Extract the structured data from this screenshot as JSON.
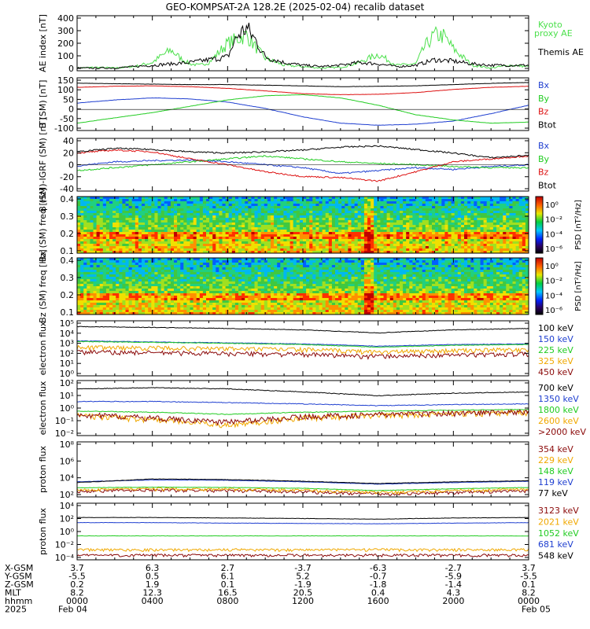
{
  "title": "GEO-KOMPSAT-2A 128.2E (2025-02-04) recalib dataset",
  "colors": {
    "black": "#000000",
    "blue": "#1f3fd0",
    "green": "#22cc22",
    "red": "#dd1111",
    "orange": "#f0a800",
    "darkred": "#8b0a0a",
    "lightgreen": "#4ce04c"
  },
  "chart_data": [
    {
      "type": "line",
      "id": "ae",
      "ylabel": "AE index [nT]",
      "ylim": [
        0,
        400
      ],
      "yticks": [
        "400",
        "300",
        "200",
        "100",
        "0"
      ],
      "series": [
        {
          "name": "Kyoto proxy AE",
          "color": "lightgreen",
          "x": [
            0,
            1,
            2,
            3,
            4,
            4.5,
            5,
            5.5,
            6,
            6.5,
            7,
            8,
            9,
            9.5,
            10,
            11,
            12,
            13,
            14,
            15,
            16,
            17,
            18,
            18.5,
            19,
            19.5,
            20,
            21,
            22,
            23,
            24
          ],
          "values": [
            20,
            25,
            20,
            30,
            60,
            110,
            150,
            90,
            50,
            40,
            60,
            200,
            260,
            170,
            90,
            40,
            30,
            20,
            25,
            60,
            120,
            40,
            50,
            180,
            260,
            250,
            160,
            40,
            20,
            40,
            30
          ]
        },
        {
          "name": "Themis AE",
          "color": "black",
          "x": [
            0,
            2,
            4,
            6,
            7,
            8,
            8.5,
            9,
            9.5,
            10,
            11,
            12,
            13,
            14,
            15,
            16,
            17,
            18,
            19,
            20,
            21,
            22,
            24
          ],
          "values": [
            20,
            20,
            40,
            60,
            80,
            100,
            250,
            310,
            220,
            100,
            60,
            40,
            30,
            40,
            60,
            50,
            30,
            40,
            80,
            70,
            50,
            40,
            40
          ]
        }
      ]
    },
    {
      "type": "line",
      "id": "bsm",
      "ylabel": "B (SM) [nT]",
      "ylim": [
        -100,
        150
      ],
      "yticks": [
        "150",
        "100",
        "50",
        "0",
        "-50",
        "-100"
      ],
      "series": [
        {
          "name": "Bx",
          "color": "blue",
          "x": [
            0,
            2,
            4,
            6,
            8,
            10,
            12,
            14,
            16,
            18,
            20,
            22,
            24
          ],
          "values": [
            30,
            45,
            55,
            50,
            35,
            5,
            -35,
            -65,
            -75,
            -70,
            -55,
            -20,
            20
          ]
        },
        {
          "name": "By",
          "color": "green",
          "x": [
            0,
            2,
            4,
            6,
            8,
            10,
            12,
            14,
            16,
            18,
            20,
            22,
            24
          ],
          "values": [
            -65,
            -40,
            -15,
            15,
            45,
            65,
            70,
            55,
            20,
            -25,
            -50,
            -65,
            -60
          ]
        },
        {
          "name": "Bz",
          "color": "red",
          "x": [
            0,
            2,
            4,
            6,
            8,
            10,
            12,
            14,
            16,
            18,
            20,
            22,
            24
          ],
          "values": [
            105,
            110,
            112,
            108,
            100,
            88,
            75,
            70,
            72,
            80,
            95,
            105,
            110
          ]
        },
        {
          "name": "Btot",
          "color": "black",
          "x": [
            0,
            2,
            4,
            6,
            8,
            10,
            12,
            14,
            16,
            18,
            20,
            22,
            24
          ],
          "values": [
            125,
            122,
            120,
            118,
            118,
            115,
            112,
            108,
            110,
            112,
            118,
            124,
            128
          ]
        }
      ]
    },
    {
      "type": "line",
      "id": "dbsm",
      "ylabel": "B (SM)-IGRF (SM) [nT]",
      "ylim": [
        -45,
        45
      ],
      "yticks": [
        "40",
        "20",
        "0",
        "-20",
        "-40"
      ],
      "series": [
        {
          "name": "Bx",
          "color": "blue",
          "x": [
            0,
            2,
            4,
            6,
            8,
            10,
            12,
            14,
            16,
            18,
            20,
            22,
            24
          ],
          "values": [
            -2,
            5,
            7,
            8,
            5,
            0,
            -5,
            -15,
            -10,
            -5,
            -8,
            -3,
            0
          ]
        },
        {
          "name": "By",
          "color": "green",
          "x": [
            0,
            2,
            4,
            6,
            8,
            10,
            12,
            14,
            16,
            18,
            20,
            22,
            24
          ],
          "values": [
            -10,
            -5,
            0,
            5,
            10,
            15,
            10,
            5,
            2,
            0,
            -3,
            -5,
            -5
          ]
        },
        {
          "name": "Bz",
          "color": "red",
          "x": [
            0,
            2,
            4,
            6,
            8,
            10,
            12,
            14,
            16,
            18,
            20,
            22,
            24
          ],
          "values": [
            20,
            25,
            22,
            10,
            0,
            -12,
            -20,
            -22,
            -28,
            -12,
            5,
            10,
            15
          ]
        },
        {
          "name": "Btot",
          "color": "black",
          "x": [
            0,
            2,
            4,
            6,
            8,
            10,
            12,
            14,
            16,
            18,
            20,
            22,
            24
          ],
          "values": [
            22,
            28,
            26,
            22,
            20,
            22,
            25,
            30,
            32,
            26,
            20,
            12,
            16
          ]
        }
      ]
    },
    {
      "type": "heatmap",
      "id": "bx-spec",
      "ylabel": "Bx (SM) freq [Hz]",
      "ylim": [
        0.05,
        0.5
      ],
      "yticks": [
        "0.4",
        "0.3",
        "0.2",
        "0.1"
      ],
      "colorbar": {
        "label": "PSD [nT²/Hz]",
        "ticks": [
          "10⁰",
          "10⁻²",
          "10⁻⁴",
          "10⁻⁶"
        ]
      }
    },
    {
      "type": "heatmap",
      "id": "bz-spec",
      "ylabel": "Bz (SM) freq [Hz]",
      "ylim": [
        0.05,
        0.5
      ],
      "yticks": [
        "0.4",
        "0.3",
        "0.2",
        "0.1"
      ],
      "colorbar": {
        "label": "PSD [nT²/Hz]",
        "ticks": [
          "10⁰",
          "10⁻²",
          "10⁻⁴",
          "10⁻⁶"
        ]
      }
    },
    {
      "type": "line",
      "id": "eflux-lo",
      "log": true,
      "ylabel": "electron flux",
      "ylim": [
        1,
        100000
      ],
      "yticks": [
        "10⁵",
        "10⁴",
        "10³",
        "10²",
        "10¹",
        "10⁰"
      ],
      "series": [
        {
          "name": "100 keV",
          "color": "black",
          "x": [
            0,
            4,
            8,
            12,
            16,
            20,
            24
          ],
          "values": [
            30000,
            25000,
            20000,
            15000,
            8000,
            15000,
            20000
          ]
        },
        {
          "name": "150 keV",
          "color": "blue",
          "x": [
            0,
            4,
            8,
            12,
            16,
            20,
            24
          ],
          "values": [
            1500,
            1200,
            1000,
            800,
            500,
            700,
            800
          ]
        },
        {
          "name": "225 keV",
          "color": "green",
          "x": [
            0,
            4,
            8,
            12,
            16,
            20,
            24
          ],
          "values": [
            1300,
            1100,
            900,
            700,
            400,
            600,
            700
          ]
        },
        {
          "name": "325 keV",
          "color": "orange",
          "x": [
            0,
            4,
            8,
            12,
            16,
            20,
            24
          ],
          "values": [
            400,
            350,
            300,
            250,
            150,
            200,
            250
          ]
        },
        {
          "name": "450 keV",
          "color": "darkred",
          "x": [
            0,
            4,
            8,
            12,
            16,
            20,
            24
          ],
          "values": [
            150,
            130,
            110,
            90,
            60,
            80,
            100
          ]
        }
      ]
    },
    {
      "type": "line",
      "id": "eflux-hi",
      "log": true,
      "ylabel": "electron flux",
      "ylim": [
        0.01,
        100
      ],
      "yticks": [
        "10²",
        "10¹",
        "10⁰",
        "10⁻¹",
        "10⁻²"
      ],
      "series": [
        {
          "name": "700 keV",
          "color": "black",
          "x": [
            0,
            4,
            8,
            12,
            16,
            20,
            24
          ],
          "values": [
            25,
            30,
            25,
            15,
            8,
            12,
            15
          ]
        },
        {
          "name": "1350 keV",
          "color": "blue",
          "x": [
            0,
            4,
            8,
            12,
            16,
            20,
            24
          ],
          "values": [
            3,
            3,
            2.5,
            2,
            1.5,
            1.8,
            2
          ]
        },
        {
          "name": "1800 keV",
          "color": "green",
          "x": [
            0,
            4,
            8,
            12,
            16,
            20,
            24
          ],
          "values": [
            0.6,
            0.5,
            0.35,
            0.5,
            0.6,
            0.7,
            0.8
          ]
        },
        {
          "name": "2600 keV",
          "color": "orange",
          "x": [
            0,
            4,
            8,
            12,
            16,
            20,
            24
          ],
          "values": [
            0.3,
            0.15,
            0.06,
            0.2,
            0.3,
            0.4,
            0.5
          ]
        },
        {
          "name": ">2000 keV",
          "color": "darkred",
          "x": [
            0,
            4,
            8,
            12,
            16,
            20,
            24
          ],
          "values": [
            0.35,
            0.2,
            0.1,
            0.25,
            0.35,
            0.45,
            0.55
          ]
        }
      ]
    },
    {
      "type": "line",
      "id": "pflux-lo",
      "log": true,
      "ylabel": "proton flux",
      "ylim": [
        50,
        1000000000
      ],
      "yticks": [
        "10⁸",
        "10⁶",
        "10⁴",
        "10²"
      ],
      "series": [
        {
          "name": "354 keV",
          "color": "darkred",
          "x": [
            0,
            4,
            8,
            12,
            16,
            20,
            24
          ],
          "values": [
            300,
            400,
            350,
            250,
            120,
            200,
            300
          ]
        },
        {
          "name": "229 keV",
          "color": "orange",
          "x": [
            0,
            4,
            8,
            12,
            16,
            20,
            24
          ],
          "values": [
            500,
            600,
            550,
            400,
            200,
            350,
            500
          ]
        },
        {
          "name": "148 keV",
          "color": "green",
          "x": [
            0,
            4,
            8,
            12,
            16,
            20,
            24
          ],
          "values": [
            800,
            1000,
            900,
            700,
            350,
            600,
            900
          ]
        },
        {
          "name": "119 keV",
          "color": "blue",
          "x": [
            0,
            4,
            8,
            12,
            16,
            20,
            24
          ],
          "values": [
            5000,
            9000,
            8000,
            5000,
            2500,
            4000,
            6000
          ]
        },
        {
          "name": "77 keV",
          "color": "black",
          "x": [
            0,
            4,
            8,
            12,
            16,
            20,
            24
          ],
          "values": [
            4000,
            12000,
            10000,
            6000,
            3000,
            5000,
            7000
          ]
        }
      ]
    },
    {
      "type": "line",
      "id": "pflux-hi",
      "log": true,
      "ylabel": "proton flux",
      "ylim": [
        3e-05,
        10000
      ],
      "yticks": [
        "10⁴",
        "10²",
        "10⁰",
        "10⁻²",
        "10⁻⁴"
      ],
      "series": [
        {
          "name": "3123 keV",
          "color": "darkred",
          "x": [
            0,
            4,
            8,
            12,
            16,
            20,
            24
          ],
          "values": [
            0.00015,
            0.00015,
            0.00015,
            0.00015,
            0.00015,
            0.00015,
            0.00015
          ]
        },
        {
          "name": "2021 keV",
          "color": "orange",
          "x": [
            0,
            4,
            8,
            12,
            16,
            20,
            24
          ],
          "values": [
            0.001,
            0.001,
            0.001,
            0.001,
            0.001,
            0.001,
            0.001
          ]
        },
        {
          "name": "1052 keV",
          "color": "green",
          "x": [
            0,
            4,
            8,
            12,
            16,
            20,
            24
          ],
          "values": [
            0.12,
            0.12,
            0.12,
            0.12,
            0.12,
            0.12,
            0.12
          ]
        },
        {
          "name": "681 keV",
          "color": "blue",
          "x": [
            0,
            4,
            8,
            12,
            16,
            20,
            24
          ],
          "values": [
            12,
            12,
            10,
            9,
            8,
            10,
            12
          ]
        },
        {
          "name": "548 keV",
          "color": "black",
          "x": [
            0,
            4,
            8,
            12,
            16,
            20,
            24
          ],
          "values": [
            70,
            70,
            60,
            50,
            40,
            60,
            70
          ]
        }
      ]
    }
  ],
  "ephemeris": {
    "rows": [
      {
        "label": "X-GSM",
        "values": [
          "3.7",
          "6.3",
          "2.7",
          "-3.7",
          "-6.3",
          "-2.7",
          "3.7"
        ]
      },
      {
        "label": "Y-GSM",
        "values": [
          "-5.5",
          "0.5",
          "6.1",
          "5.2",
          "-0.7",
          "-5.9",
          "-5.5"
        ]
      },
      {
        "label": "Z-GSM",
        "values": [
          "0.2",
          "1.9",
          "0.1",
          "-1.9",
          "-1.8",
          "-1.4",
          "0.1"
        ]
      },
      {
        "label": "MLT",
        "values": [
          "8.2",
          "12.3",
          "16.5",
          "20.5",
          "0.4",
          "4.3",
          "8.2"
        ]
      },
      {
        "label": "hhmm",
        "values": [
          "0000",
          "0400",
          "0800",
          "1200",
          "1600",
          "2000",
          "0000"
        ]
      },
      {
        "label": "2025",
        "values": [
          "Feb 04",
          "",
          "",
          "",
          "",
          "",
          "Feb 05"
        ]
      }
    ]
  }
}
